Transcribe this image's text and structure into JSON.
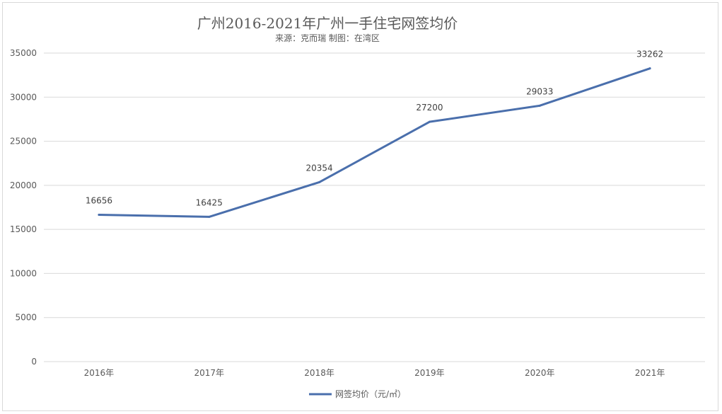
{
  "chart_data": {
    "type": "line",
    "title": "广州2016-2021年广州一手住宅网签均价",
    "subtitle": "来源：克而瑞 制图：在湾区",
    "categories": [
      "2016年",
      "2017年",
      "2018年",
      "2019年",
      "2020年",
      "2021年"
    ],
    "series": [
      {
        "name": "网签均价（元/㎡）",
        "values": [
          16656,
          16425,
          20354,
          27200,
          29033,
          33262
        ],
        "color": "#4a6fac"
      }
    ],
    "ylim": [
      0,
      35000
    ],
    "yticks": [
      0,
      5000,
      10000,
      15000,
      20000,
      25000,
      30000,
      35000
    ],
    "grid": true,
    "legend": "bottom",
    "data_labels": true,
    "gridline_color": "#d9d9d9"
  }
}
